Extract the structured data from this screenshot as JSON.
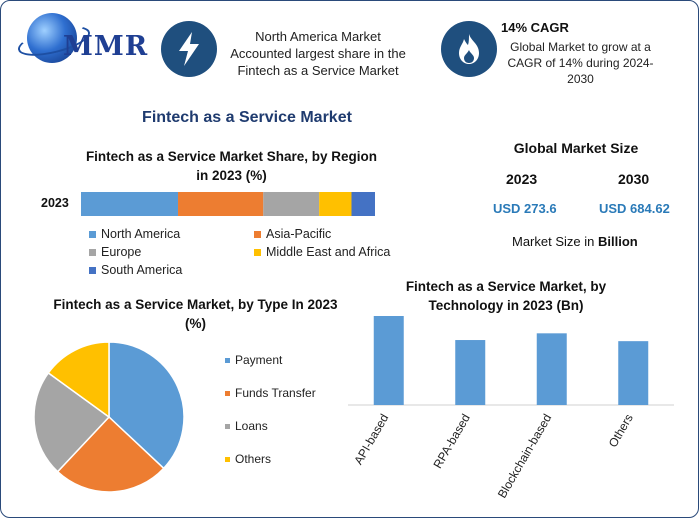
{
  "logo": {
    "text": "MMR"
  },
  "header": {
    "center_text": "North America Market Accounted largest share in the Fintech as a Service Market",
    "right_title": "14% CAGR",
    "right_text": "Global Market to grow at a CAGR of 14% during 2024-2030",
    "bolt_icon": "lightning-bolt",
    "flame_icon": "flame"
  },
  "main_title": "Fintech as a Service Market",
  "market_size": {
    "title": "Global Market Size",
    "year1": "2023",
    "year2": "2030",
    "value1": "USD 273.6",
    "value2": "USD 684.62",
    "note_prefix": "Market Size in ",
    "note_unit": "Billion"
  },
  "chart_data": [
    {
      "type": "bar",
      "orientation": "horizontal-stacked",
      "title": "Fintech as a Service Market Share, by Region in 2023 (%)",
      "categories": [
        "2023"
      ],
      "series": [
        {
          "name": "North America",
          "values": [
            33
          ],
          "color": "#5b9bd5"
        },
        {
          "name": "Asia-Pacific",
          "values": [
            29
          ],
          "color": "#ed7d31"
        },
        {
          "name": "Europe",
          "values": [
            19
          ],
          "color": "#a5a5a5"
        },
        {
          "name": "Middle East and Africa",
          "values": [
            11
          ],
          "color": "#ffc000"
        },
        {
          "name": "South America",
          "values": [
            8
          ],
          "color": "#4472c4"
        }
      ],
      "legend_position": "bottom"
    },
    {
      "type": "pie",
      "title": "Fintech as a Service Market, by Type In 2023 (%)",
      "labels": [
        "Payment",
        "Funds Transfer",
        "Loans",
        "Others"
      ],
      "values": [
        37,
        25,
        23,
        15
      ],
      "colors": [
        "#5b9bd5",
        "#ed7d31",
        "#a5a5a5",
        "#ffc000"
      ],
      "legend_position": "right"
    },
    {
      "type": "bar",
      "title": "Fintech as a Service Market, by Technology in 2023 (Bn)",
      "categories": [
        "API-based",
        "RPA-based",
        "Blockchain-based",
        "Others"
      ],
      "values": [
        80,
        58,
        64,
        57
      ],
      "color": "#5b9bd5",
      "ylim": [
        0,
        100
      ],
      "grid": false
    }
  ]
}
